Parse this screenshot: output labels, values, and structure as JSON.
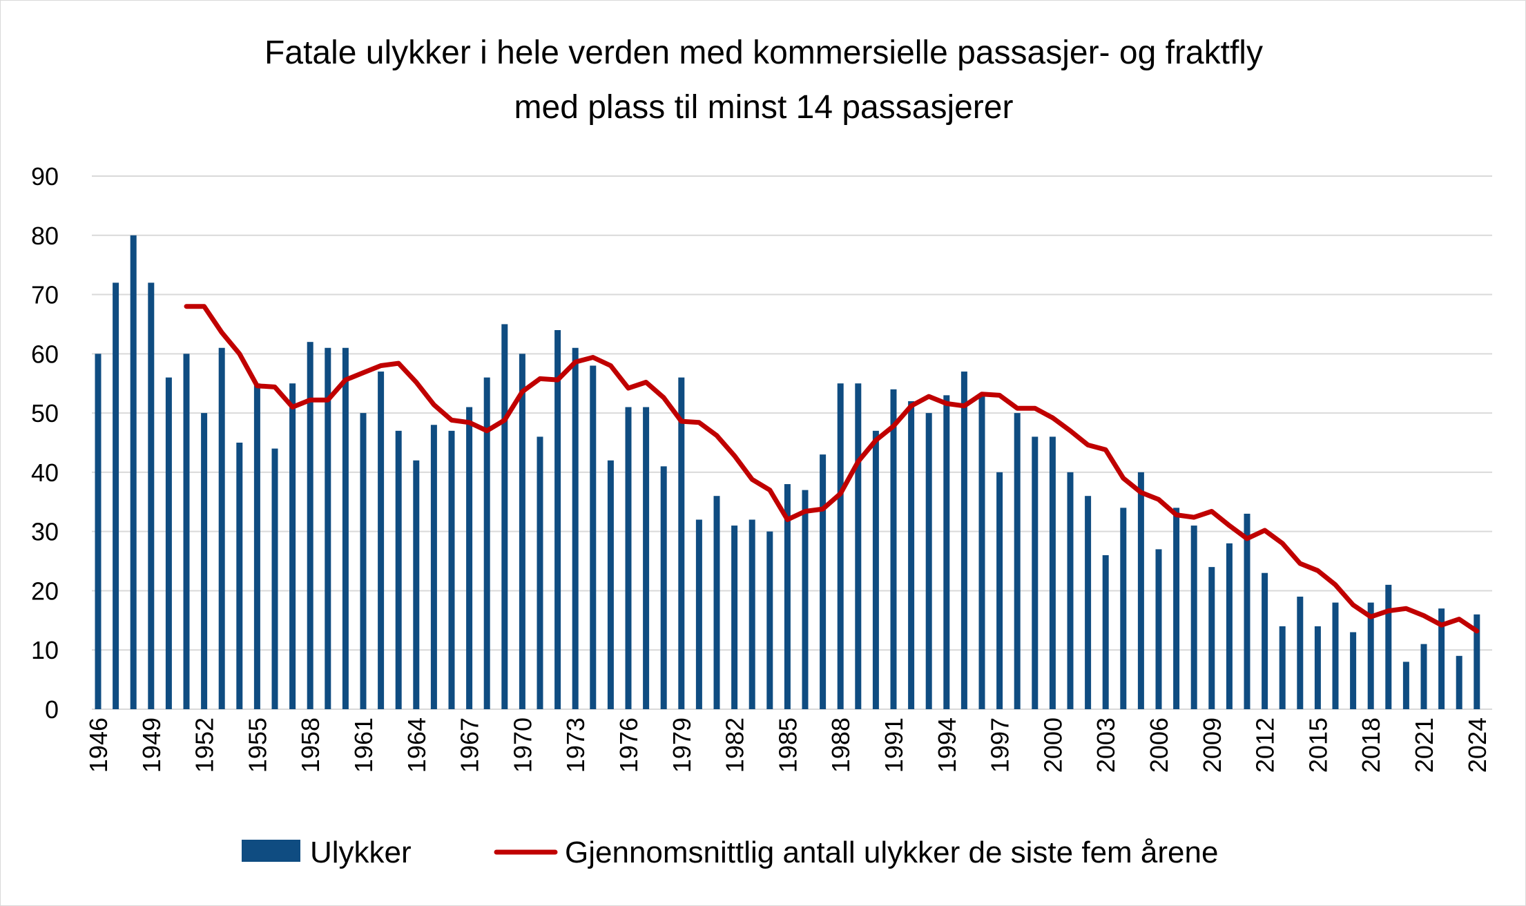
{
  "chart_data": {
    "type": "bar",
    "title_lines": [
      "Fatale ulykker i hele verden med kommersielle passasjer- og fraktfly",
      "med plass til minst 14 passasjerer"
    ],
    "categories": [
      1946,
      1947,
      1948,
      1949,
      1950,
      1951,
      1952,
      1953,
      1954,
      1955,
      1956,
      1957,
      1958,
      1959,
      1960,
      1961,
      1962,
      1963,
      1964,
      1965,
      1966,
      1967,
      1968,
      1969,
      1970,
      1971,
      1972,
      1973,
      1974,
      1975,
      1976,
      1977,
      1978,
      1979,
      1980,
      1981,
      1982,
      1983,
      1984,
      1985,
      1986,
      1987,
      1988,
      1989,
      1990,
      1991,
      1992,
      1993,
      1994,
      1995,
      1996,
      1997,
      1998,
      1999,
      2000,
      2001,
      2002,
      2003,
      2004,
      2005,
      2006,
      2007,
      2008,
      2009,
      2010,
      2011,
      2012,
      2013,
      2014,
      2015,
      2016,
      2017,
      2018,
      2019,
      2020,
      2021,
      2022,
      2023,
      2024
    ],
    "x_tick_labels": [
      "1946",
      "1949",
      "1952",
      "1955",
      "1958",
      "1961",
      "1964",
      "1967",
      "1970",
      "1973",
      "1976",
      "1979",
      "1982",
      "1985",
      "1988",
      "1991",
      "1994",
      "1997",
      "2000",
      "2003",
      "2006",
      "2009",
      "2012",
      "2015",
      "2018",
      "2021",
      "2024"
    ],
    "series": [
      {
        "name": "Ulykker",
        "kind": "bar",
        "color": "#0f4c81",
        "values": [
          60,
          72,
          80,
          72,
          56,
          60,
          50,
          61,
          45,
          55,
          44,
          55,
          62,
          61,
          61,
          50,
          57,
          47,
          42,
          48,
          47,
          51,
          56,
          65,
          60,
          46,
          64,
          61,
          58,
          42,
          51,
          51,
          41,
          56,
          32,
          36,
          31,
          32,
          30,
          38,
          37,
          43,
          55,
          55,
          47,
          54,
          52,
          50,
          53,
          57,
          53,
          40,
          50,
          46,
          46,
          40,
          36,
          26,
          34,
          40,
          27,
          34,
          31,
          24,
          28,
          33,
          23,
          14,
          19,
          14,
          18,
          13,
          18,
          21,
          8,
          11,
          17,
          9,
          16
        ]
      },
      {
        "name": "Gjennomsnittlig antall ulykker de siste fem årene",
        "kind": "line",
        "color": "#c00000",
        "values": [
          null,
          null,
          null,
          null,
          null,
          68,
          68,
          63.6,
          60,
          54.6,
          54.4,
          51,
          52.2,
          52.2,
          55.6,
          56.8,
          58,
          58.4,
          55.2,
          51.4,
          48.8,
          48.4,
          47,
          48.8,
          53.6,
          55.8,
          55.6,
          58.6,
          59.4,
          58,
          54.2,
          55.2,
          52.6,
          48.6,
          48.4,
          46.2,
          42.8,
          38.8,
          37,
          32,
          33.4,
          33.8,
          36.4,
          41.8,
          45.4,
          47.8,
          51.2,
          52.8,
          51.6,
          51.2,
          53.2,
          53,
          50.8,
          50.8,
          49.2,
          47,
          44.6,
          43.8,
          39,
          36.6,
          35.4,
          32.8,
          32.4,
          33.4,
          31,
          28.8,
          30.2,
          28,
          24.6,
          23.4,
          21,
          17.6,
          15.6,
          16.6,
          17,
          15.8,
          14.2,
          15.2,
          13.2
        ]
      }
    ],
    "ylim": [
      0,
      90
    ],
    "y_ticks": [
      "0",
      "10",
      "20",
      "30",
      "40",
      "50",
      "60",
      "70",
      "80",
      "90"
    ],
    "grid": true,
    "legend_position": "bottom"
  },
  "colors": {
    "bar": "#0f4c81",
    "line": "#c00000",
    "grid": "#d9d9d9"
  }
}
